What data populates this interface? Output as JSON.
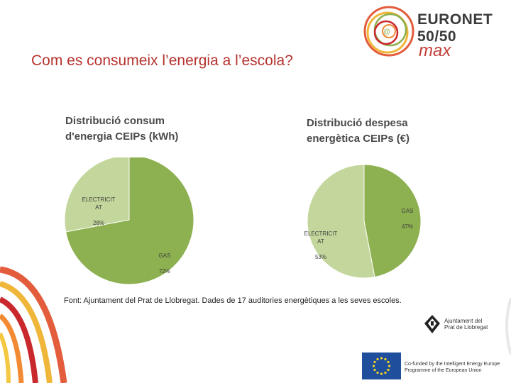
{
  "header": {
    "title": "Com es consumeix l’energia a l’escola?"
  },
  "logo": {
    "line1": "EURONET",
    "line2": "50/50",
    "line3": "max"
  },
  "chart_data": [
    {
      "type": "pie",
      "title_line1": "Distribució consum",
      "title_line2": "d'energia CEIPs (kWh)",
      "slices": [
        {
          "label": "ELECTRICIT\nAT",
          "pct_text": "28%",
          "value": 28,
          "color": "#c3d69b"
        },
        {
          "label": "GAS",
          "pct_text": "72%",
          "value": 72,
          "color": "#8db050"
        }
      ]
    },
    {
      "type": "pie",
      "title_line1": "Distribució despesa",
      "title_line2": "energètica CEIPs (€)",
      "slices": [
        {
          "label": "GAS",
          "pct_text": "47%",
          "value": 47,
          "color": "#8db050"
        },
        {
          "label": "ELECTRICIT\nAT",
          "pct_text": "53%",
          "value": 53,
          "color": "#c3d69b"
        }
      ]
    }
  ],
  "footer": {
    "source": "Font: Ajuntament del Prat de Llobregat. Dades de 17 auditories energètiques a les seves escoles.",
    "ajuntament": "Ajuntament del\nPrat de Llobregat",
    "eu_text": "Co-funded by the Intelligent Energy Europe\nProgramme of the European Union"
  }
}
